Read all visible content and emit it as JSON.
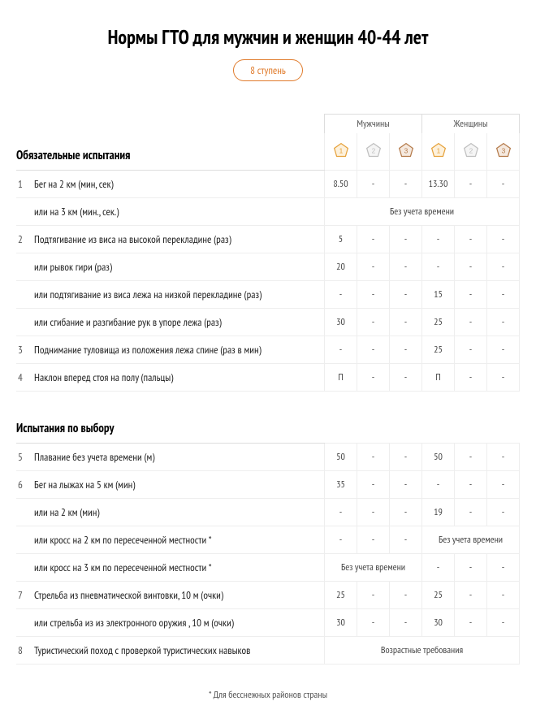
{
  "title": "Нормы ГТО для мужчин и женщин 40-44 лет",
  "badge": "8 ступень",
  "headers": {
    "men": "Мужчины",
    "women": "Женщины"
  },
  "colors": {
    "gold": {
      "stroke": "#e6a23c",
      "fill": "#fdf1dc",
      "text": "#e6a23c"
    },
    "silver": {
      "stroke": "#bfbfbf",
      "fill": "#f5f5f5",
      "text": "#bfbfbf"
    },
    "bronze": {
      "stroke": "#b47a4a",
      "fill": "#f5e9df",
      "text": "#b47a4a"
    }
  },
  "section1": "Обязательные испытания",
  "section2": "Испытания по выбору",
  "note_no_time": "Без учета времени",
  "note_age": "Возрастные требования",
  "footnote": "* Для бесснежных районов страны",
  "rows": [
    {
      "n": "1",
      "label": "Бег на 2 км (мин, сек)",
      "m": [
        "8.50",
        "-",
        "-"
      ],
      "w": [
        "13.30",
        "-",
        "-"
      ]
    },
    {
      "n": "",
      "label": "или на 3 км (мин., сек.)",
      "full_note": "note_no_time"
    },
    {
      "n": "2",
      "label": "Подтягивание из виса на высокой перекладине (раз)",
      "m": [
        "5",
        "-",
        "-"
      ],
      "w": [
        "-",
        "-",
        "-"
      ]
    },
    {
      "n": "",
      "label": "или рывок гири (раз)",
      "m": [
        "20",
        "-",
        "-"
      ],
      "w": [
        "-",
        "-",
        "-"
      ]
    },
    {
      "n": "",
      "label": "или подтягивание из виса лежа на низкой перекладине (раз)",
      "m": [
        "-",
        "-",
        "-"
      ],
      "w": [
        "15",
        "-",
        "-"
      ]
    },
    {
      "n": "",
      "label": "или  сгибание и разгибание рук в упоре лежа (раз)",
      "m": [
        "30",
        "-",
        "-"
      ],
      "w": [
        "25",
        "-",
        "-"
      ]
    },
    {
      "n": "3",
      "label": "Поднимание туловища из положения лежа спине (раз в мин)",
      "m": [
        "-",
        "-",
        "-"
      ],
      "w": [
        "25",
        "-",
        "-"
      ]
    },
    {
      "n": "4",
      "label": "Наклон вперед стоя на полу (пальцы)",
      "m": [
        "П",
        "-",
        "-"
      ],
      "w": [
        "П",
        "-",
        "-"
      ]
    }
  ],
  "rows2": [
    {
      "n": "5",
      "label": "Плавание без учета времени (м)",
      "m": [
        "50",
        "-",
        "-"
      ],
      "w": [
        "50",
        "-",
        "-"
      ]
    },
    {
      "n": "6",
      "label": "Бег на лыжах на 5 км (мин)",
      "m": [
        "35",
        "-",
        "-"
      ],
      "w": [
        "-",
        "-",
        "-"
      ]
    },
    {
      "n": "",
      "label": "или на 2 км (мин)",
      "m": [
        "-",
        "-",
        "-"
      ],
      "w": [
        "19",
        "-",
        "-"
      ]
    },
    {
      "n": "",
      "label": "или кросс на 2 км по пересеченной местности *",
      "m": [
        "-",
        "-",
        "-"
      ],
      "w_note": "note_no_time"
    },
    {
      "n": "",
      "label": "или кросс на 3 км по пересеченной местности *",
      "m_note": "note_no_time",
      "w": [
        "-",
        "-",
        "-"
      ]
    },
    {
      "n": "7",
      "label": "Стрельба из пневматической винтовки, 10 м (очки)",
      "m": [
        "25",
        "-",
        "-"
      ],
      "w": [
        "25",
        "-",
        "-"
      ]
    },
    {
      "n": "",
      "label": "или стрельба из из электронного оружия , 10 м (очки)",
      "m": [
        "30",
        "-",
        "-"
      ],
      "w": [
        "30",
        "-",
        "-"
      ]
    },
    {
      "n": "8",
      "label": "Туристический поход с проверкой туристических навыков",
      "full_note": "note_age"
    }
  ]
}
